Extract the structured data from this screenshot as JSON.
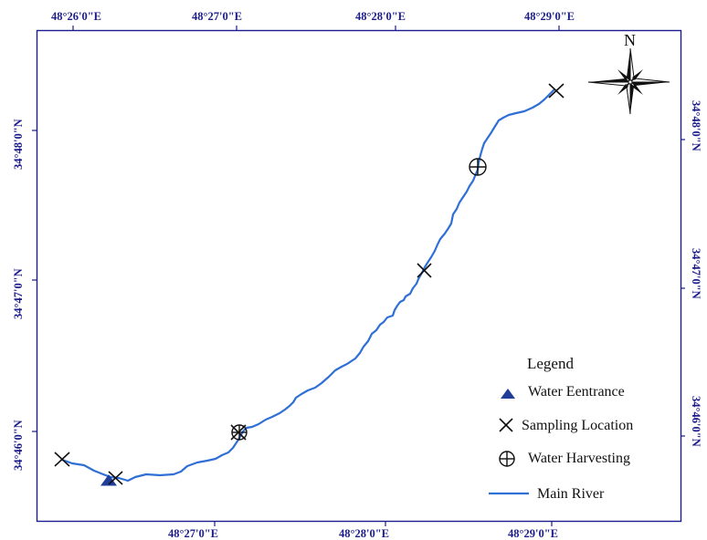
{
  "map": {
    "frame_color": "#1c1c8c",
    "river_color": "#2f6fd6",
    "top_longitude_labels": [
      "48°26'0\"E",
      "48°27'0\"E",
      "48°28'0\"E",
      "48°29'0\"E"
    ],
    "bottom_longitude_labels": [
      "48°27'0\"E",
      "48°28'0\"E",
      "48°29'0\"E"
    ],
    "left_latitude_labels": [
      "34°48'0\"N",
      "34°47'0\"N",
      "34°46'0\"N"
    ],
    "right_latitude_labels": [
      "34°48'0\"N",
      "34°47'0\"N",
      "34°46'0\"N"
    ],
    "north_arrow": {
      "label": "N",
      "icon": "compass-rose-icon"
    }
  },
  "legend": {
    "title": "Legend",
    "items": [
      {
        "label": "Water Eentrance",
        "icon": "triangle-icon",
        "color": "#1f3d99"
      },
      {
        "label": "Sampling Location",
        "icon": "x-mark-icon",
        "color": "#111111"
      },
      {
        "label": "Water Harvesting",
        "icon": "circle-plus-icon",
        "color": "#111111"
      },
      {
        "label": "Main River",
        "icon": "line-icon",
        "color": "#2f6fd6"
      }
    ]
  },
  "features": {
    "water_entrance": {
      "icon": "triangle-icon"
    },
    "sampling_locations_count": 5,
    "water_harvesting_count": 2
  }
}
